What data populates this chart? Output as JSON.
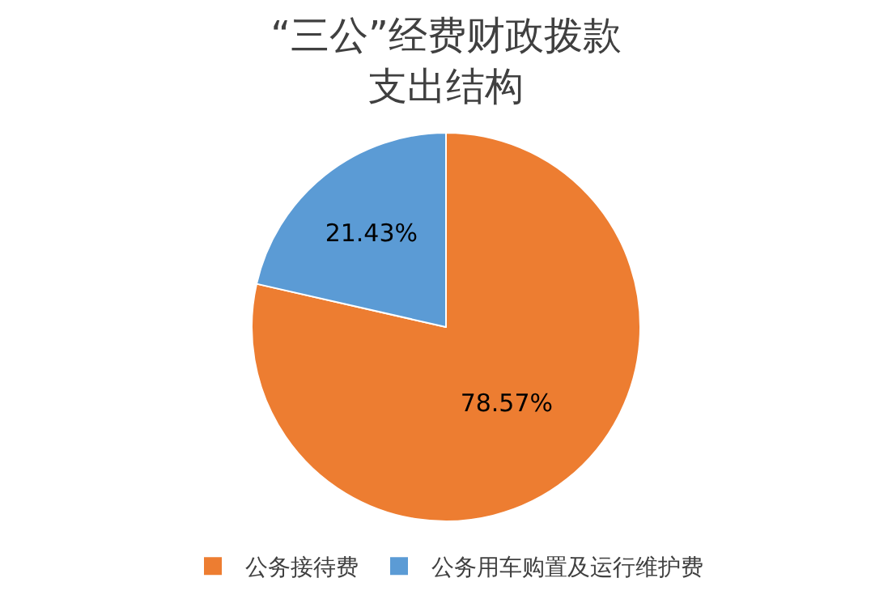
{
  "chart_data": {
    "type": "pie",
    "title": "“三公”经费财政拨款支出结构",
    "categories": [
      "公务接待费",
      "公务用车购置及运行维护费"
    ],
    "values": [
      78.57,
      21.43
    ],
    "colors": [
      "#ed7d31",
      "#5b9bd5"
    ],
    "value_labels": [
      "78.57%",
      "21.43%"
    ],
    "legend": "bottom"
  }
}
